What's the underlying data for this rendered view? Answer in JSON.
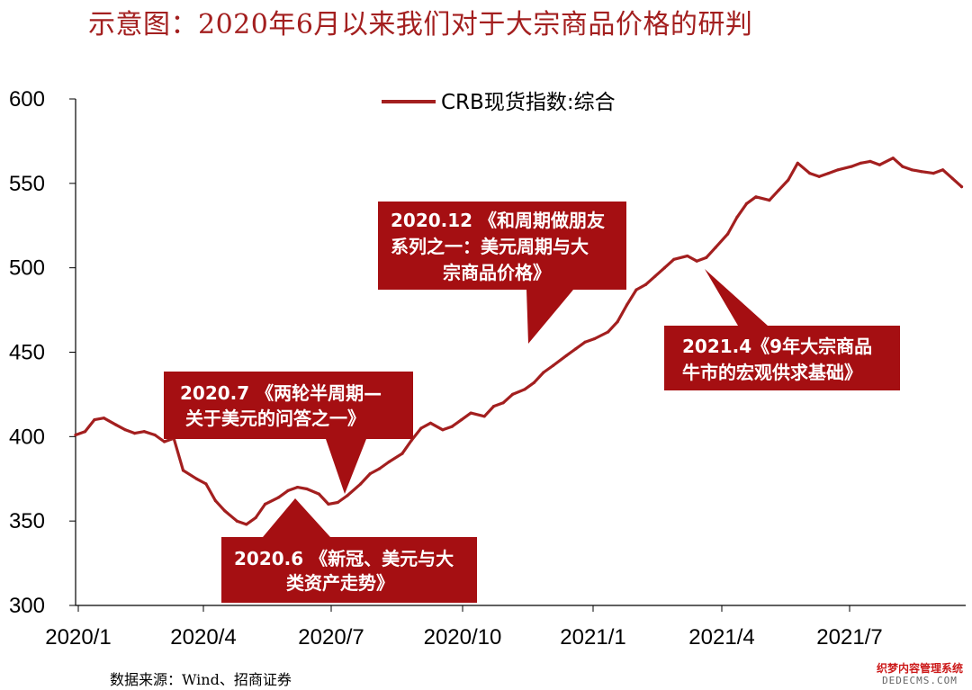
{
  "title": "示意图：2020年6月以来我们对于大宗商品价格的研判",
  "source": "数据来源：Wind、招商证券",
  "watermark": {
    "line1": "织梦内容管理系统",
    "line2": "DEDECMS.COM"
  },
  "colors": {
    "line": "#a31f1f",
    "callout": "#a50f12",
    "title": "#a31f1f"
  },
  "chart_data": {
    "type": "line",
    "title": "",
    "xlabel": "",
    "ylabel": "",
    "ylim": [
      300,
      600
    ],
    "yticks": [
      300,
      350,
      400,
      450,
      500,
      550,
      600
    ],
    "xlim": [
      "2020-01-02",
      "2021-10-25"
    ],
    "xticks": [
      "2020/1",
      "2020/4",
      "2020/7",
      "2020/10",
      "2021/1",
      "2021/4",
      "2021/7"
    ],
    "legend": {
      "position": "top-center"
    },
    "grid": false,
    "series": [
      {
        "name": "CRB现货指数:综合",
        "points": [
          [
            "2020-01-02",
            401
          ],
          [
            "2020-01-09",
            403
          ],
          [
            "2020-01-16",
            410
          ],
          [
            "2020-01-23",
            411
          ],
          [
            "2020-02-01",
            407
          ],
          [
            "2020-02-08",
            404
          ],
          [
            "2020-02-15",
            402
          ],
          [
            "2020-02-22",
            403
          ],
          [
            "2020-03-01",
            401
          ],
          [
            "2020-03-08",
            397
          ],
          [
            "2020-03-15",
            399
          ],
          [
            "2020-03-22",
            380
          ],
          [
            "2020-04-01",
            375
          ],
          [
            "2020-04-08",
            372
          ],
          [
            "2020-04-15",
            362
          ],
          [
            "2020-04-22",
            356
          ],
          [
            "2020-05-01",
            350
          ],
          [
            "2020-05-08",
            348
          ],
          [
            "2020-05-15",
            352
          ],
          [
            "2020-05-22",
            360
          ],
          [
            "2020-06-01",
            364
          ],
          [
            "2020-06-08",
            368
          ],
          [
            "2020-06-15",
            370
          ],
          [
            "2020-06-22",
            369
          ],
          [
            "2020-07-01",
            366
          ],
          [
            "2020-07-08",
            360
          ],
          [
            "2020-07-15",
            361
          ],
          [
            "2020-07-22",
            365
          ],
          [
            "2020-08-01",
            372
          ],
          [
            "2020-08-08",
            378
          ],
          [
            "2020-08-15",
            381
          ],
          [
            "2020-08-22",
            385
          ],
          [
            "2020-09-01",
            390
          ],
          [
            "2020-09-08",
            398
          ],
          [
            "2020-09-15",
            405
          ],
          [
            "2020-09-22",
            408
          ],
          [
            "2020-10-01",
            404
          ],
          [
            "2020-10-08",
            406
          ],
          [
            "2020-10-15",
            410
          ],
          [
            "2020-10-22",
            414
          ],
          [
            "2020-11-01",
            412
          ],
          [
            "2020-11-08",
            418
          ],
          [
            "2020-11-15",
            420
          ],
          [
            "2020-11-22",
            425
          ],
          [
            "2020-12-01",
            428
          ],
          [
            "2020-12-08",
            432
          ],
          [
            "2020-12-15",
            438
          ],
          [
            "2020-12-22",
            442
          ],
          [
            "2021-01-01",
            448
          ],
          [
            "2021-01-08",
            452
          ],
          [
            "2021-01-15",
            456
          ],
          [
            "2021-01-22",
            458
          ],
          [
            "2021-02-01",
            462
          ],
          [
            "2021-02-08",
            468
          ],
          [
            "2021-02-15",
            478
          ],
          [
            "2021-02-22",
            487
          ],
          [
            "2021-03-01",
            490
          ],
          [
            "2021-03-08",
            495
          ],
          [
            "2021-03-15",
            500
          ],
          [
            "2021-03-22",
            505
          ],
          [
            "2021-04-01",
            507
          ],
          [
            "2021-04-08",
            504
          ],
          [
            "2021-04-15",
            506
          ],
          [
            "2021-04-22",
            512
          ],
          [
            "2021-05-01",
            520
          ],
          [
            "2021-05-08",
            530
          ],
          [
            "2021-05-15",
            538
          ],
          [
            "2021-05-22",
            542
          ],
          [
            "2021-06-01",
            540
          ],
          [
            "2021-06-08",
            546
          ],
          [
            "2021-06-15",
            552
          ],
          [
            "2021-06-22",
            562
          ],
          [
            "2021-07-01",
            556
          ],
          [
            "2021-07-08",
            554
          ],
          [
            "2021-07-15",
            556
          ],
          [
            "2021-07-22",
            558
          ],
          [
            "2021-08-01",
            560
          ],
          [
            "2021-08-08",
            562
          ],
          [
            "2021-08-15",
            563
          ],
          [
            "2021-08-22",
            561
          ],
          [
            "2021-09-01",
            565
          ],
          [
            "2021-09-08",
            560
          ],
          [
            "2021-09-15",
            558
          ],
          [
            "2021-09-22",
            557
          ],
          [
            "2021-10-01",
            556
          ],
          [
            "2021-10-08",
            558
          ],
          [
            "2021-10-15",
            553
          ],
          [
            "2021-10-22",
            548
          ]
        ]
      }
    ],
    "annotations": [
      {
        "lines": [
          "2020.12 《和周期做朋友",
          "系列之一：美元周期与大",
          "宗商品价格》"
        ]
      },
      {
        "lines": [
          "2021.4《9年大宗商品",
          "牛市的宏观供求基础》"
        ]
      },
      {
        "lines": [
          "2020.7 《两轮半周期—",
          "关于美元的问答之一》"
        ]
      },
      {
        "lines": [
          "2020.6 《新冠、美元与大",
          "类资产走势》"
        ]
      }
    ]
  }
}
